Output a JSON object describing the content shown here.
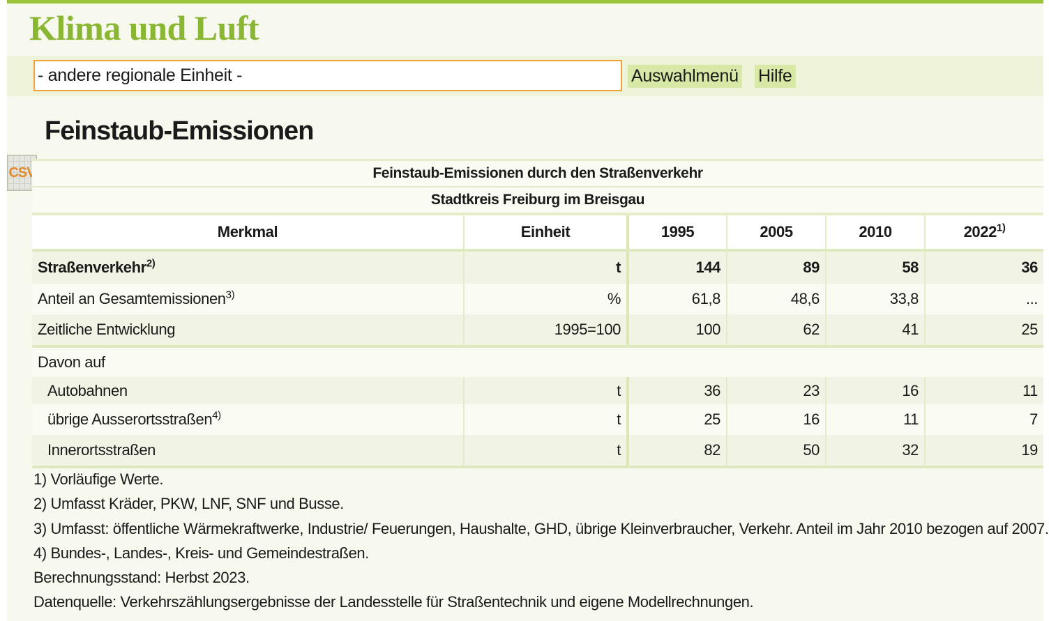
{
  "header": {
    "title": "Klima und Luft"
  },
  "toolbar": {
    "select": "- andere regionale Einheit -",
    "buttons": [
      "Auswahlmenü",
      "Hilfe"
    ]
  },
  "section": {
    "title": "Feinstaub-Emissionen",
    "icon": "CSV"
  },
  "table": {
    "caption": [
      "Feinstaub-Emissionen durch den Straßenverkehr",
      "Stadtkreis Freiburg im Breisgau"
    ],
    "columns": [
      {
        "label": "Merkmal"
      },
      {
        "label": "Einheit"
      },
      {
        "label": "1995"
      },
      {
        "label": "2005"
      },
      {
        "label": "2010"
      },
      {
        "label": "2022",
        "note": "1)"
      }
    ],
    "rows": [
      {
        "label": "Straßenverkehr",
        "note": "2)",
        "cells": [
          "t",
          "144",
          "89",
          "58",
          "36"
        ]
      },
      {
        "label": "Anteil an Gesamtemissionen",
        "note": "3)",
        "cells": [
          "%",
          "61,8",
          "48,6",
          "33,8",
          "..."
        ]
      },
      {
        "label": "Zeitliche Entwicklung",
        "cells": [
          "1995=100",
          "100",
          "62",
          "41",
          "25"
        ]
      },
      {
        "label": "Davon auf",
        "cells": []
      },
      {
        "label": "Autobahnen",
        "cells": [
          "t",
          "36",
          "23",
          "16",
          "11"
        ]
      },
      {
        "label": "übrige Ausserortsstraßen",
        "note": "4)",
        "cells": [
          "t",
          "25",
          "16",
          "11",
          "7"
        ]
      },
      {
        "label": "Innerortsstraßen",
        "cells": [
          "t",
          "82",
          "50",
          "32",
          "19"
        ]
      }
    ]
  },
  "footnotes": [
    "1) Vorläufige Werte.",
    "2) Umfasst Kräder, PKW, LNF, SNF und Busse.",
    "3) Umfasst: öffentliche Wärmekraftwerke, Industrie/ Feuerungen, Haushalte, GHD, übrige Kleinverbraucher, Verkehr. Anteil im Jahr 2010 bezogen auf 2007.",
    "4) Bundes-, Landes-, Kreis- und Gemeindestraßen.",
    "Berechnungsstand: Herbst 2023.",
    "Datenquelle: Verkehrszählungsergebnisse der Landesstelle für Straßentechnik und eigene Modellrechnungen."
  ]
}
